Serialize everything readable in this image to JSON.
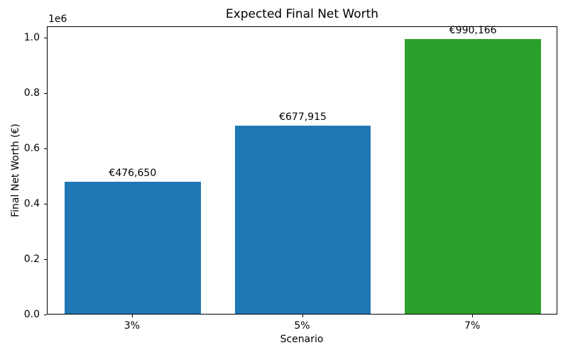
{
  "chart_data": {
    "type": "bar",
    "title": "Expected Final Net Worth",
    "xlabel": "Scenario",
    "ylabel": "Final Net Worth (€)",
    "y_offset_text": "1e6",
    "categories": [
      "3%",
      "5%",
      "7%"
    ],
    "values": [
      476650,
      677915,
      990166
    ],
    "bar_value_labels": [
      "€476,650",
      "€677,915",
      "€990,166"
    ],
    "bar_colors": [
      "#1f77b4",
      "#1f77b4",
      "#2ca02c"
    ],
    "ylim": [
      0,
      1040000
    ],
    "yticks": {
      "values": [
        0,
        200000,
        400000,
        600000,
        800000,
        1000000
      ],
      "labels": [
        "0.0",
        "0.2",
        "0.4",
        "0.6",
        "0.8",
        "1.0"
      ]
    },
    "xlim_units": [
      -0.5,
      2.5
    ],
    "bar_width_fraction": 0.8,
    "grid": false,
    "legend": "none",
    "background_color": "#ffffff",
    "axis_color": "#000000",
    "text_color": "#000000"
  }
}
